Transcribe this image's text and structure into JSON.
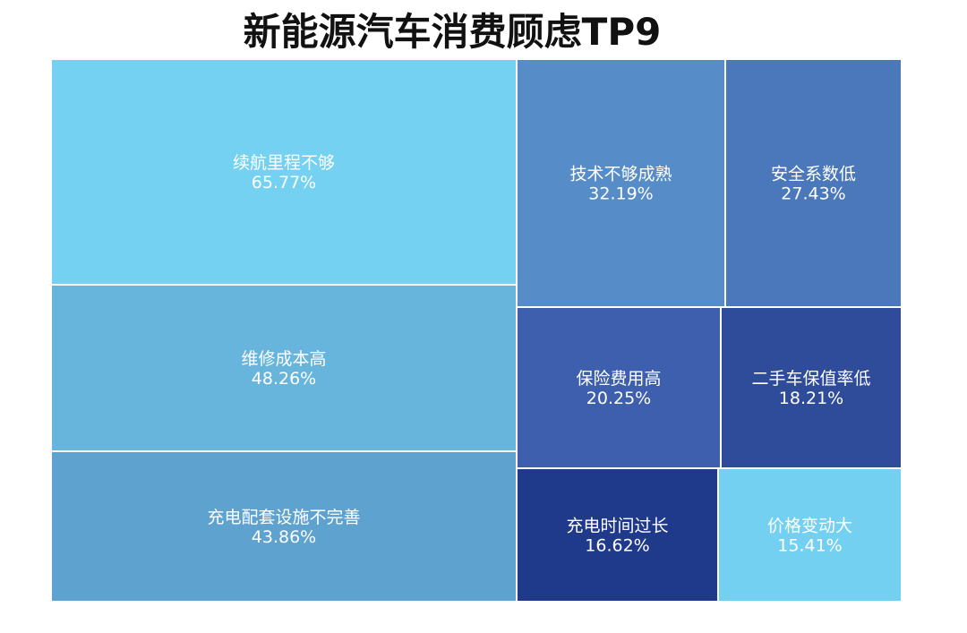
{
  "chart_data": {
    "type": "treemap",
    "title": "新能源汽车消费顾虑TP9",
    "items": [
      {
        "label": "续航里程不够",
        "value": 65.77,
        "display": "65.77%",
        "color": "#75d1f1"
      },
      {
        "label": "维修成本高",
        "value": 48.26,
        "display": "48.26%",
        "color": "#67b5dc"
      },
      {
        "label": "充电配套设施不完善",
        "value": 43.86,
        "display": "43.86%",
        "color": "#5ea2d0"
      },
      {
        "label": "技术不够成熟",
        "value": 32.19,
        "display": "32.19%",
        "color": "#568dc8"
      },
      {
        "label": "安全系数低",
        "value": 27.43,
        "display": "27.43%",
        "color": "#4a78bb"
      },
      {
        "label": "保险费用高",
        "value": 20.25,
        "display": "20.25%",
        "color": "#3e5fad"
      },
      {
        "label": "二手车保值率低",
        "value": 18.21,
        "display": "18.21%",
        "color": "#2f4c9a"
      },
      {
        "label": "充电时间过长",
        "value": 16.62,
        "display": "16.62%",
        "color": "#203a8b"
      },
      {
        "label": "价格变动大",
        "value": 15.41,
        "display": "15.41%",
        "color": "#73d0f1"
      }
    ]
  }
}
